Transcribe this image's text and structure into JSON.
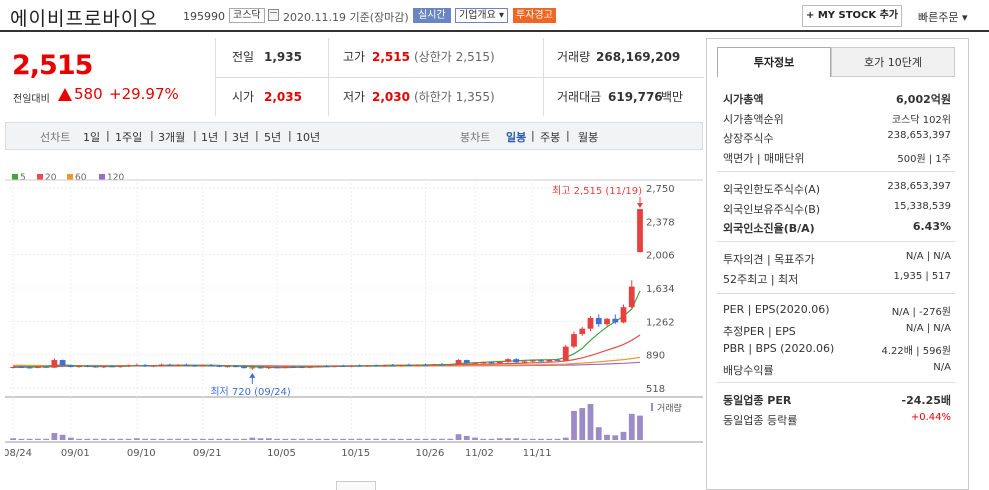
{
  "header": {
    "stock_name": "에이비프로바이오",
    "stock_code": "195990",
    "market": "코스닥",
    "date_text": "2020.11.19 기준(장마감)",
    "realtime": "실시간",
    "overview": "기업개요 ▾",
    "warning": "투자경고",
    "mystock": "+ MY STOCK 추가",
    "quick_order": "빠른주문 ▾"
  },
  "price": {
    "current": "2,515",
    "diff_label": "전일대비",
    "diff": "580",
    "rate": "+29.97%"
  },
  "summary": {
    "prev_label": "전일",
    "prev_value": "1,935",
    "high_label": "고가",
    "high_value": "2,515",
    "high_sub": "(상한가 2,515)",
    "volume_label": "거래량",
    "volume_value": "268,169,209",
    "open_label": "시가",
    "open_value": "2,035",
    "low_label": "저가",
    "low_value": "2,030",
    "low_sub": "(하한가 1,355)",
    "amount_label": "거래대금",
    "amount_value": "619,776",
    "amount_unit": "백만"
  },
  "periods": {
    "line_label": "선차트",
    "line_opts": [
      "1일",
      "1주일",
      "3개월",
      "1년",
      "3년",
      "5년",
      "10년"
    ],
    "candle_label": "봉차트",
    "candle_opts": [
      "일봉",
      "주봉",
      "월봉"
    ],
    "selected": "일봉"
  },
  "legend": [
    "5",
    "20",
    "60",
    "120"
  ],
  "colors": {
    "ma5": "#41a541",
    "ma20": "#e84c4c",
    "ma60": "#f0962d",
    "ma120": "#9b6cc8",
    "up": "#e84040",
    "down": "#3d6fd6",
    "volume": "#9b8cc8"
  },
  "sidebar": {
    "tab_active": "투자정보",
    "tab_inactive": "호가 10단계",
    "rows1": [
      {
        "k": "시가총액",
        "v": "6,002억원"
      },
      {
        "k": "시가총액순위",
        "v": "코스닥 102위"
      },
      {
        "k": "상장주식수",
        "v": "238,653,397"
      },
      {
        "k": "액면가 | 매매단위",
        "v": "500원 | 1주"
      }
    ],
    "rows2": [
      {
        "k": "외국인한도주식수(A)",
        "v": "238,653,397"
      },
      {
        "k": "외국인보유주식수(B)",
        "v": "15,338,539"
      },
      {
        "k": "외국인소진율(B/A)",
        "v": "6.43%"
      }
    ],
    "rows3": [
      {
        "k": "투자의견 | 목표주가",
        "v": "N/A | N/A"
      },
      {
        "k": "52주최고 | 최저",
        "v": "1,935 | 517"
      }
    ],
    "rows4": [
      {
        "k": "PER | EPS(2020.06)",
        "v": "N/A | -276원"
      },
      {
        "k": "추정PER | EPS",
        "v": "N/A | N/A"
      },
      {
        "k": "PBR | BPS (2020.06)",
        "v": "4.22배 | 596원"
      },
      {
        "k": "배당수익률",
        "v": "N/A"
      }
    ],
    "rows5": [
      {
        "k": "동일업종 PER",
        "v": "-24.25배"
      },
      {
        "k": "동일업종 등락률",
        "v": "+0.44%"
      }
    ]
  },
  "chart_data": {
    "type": "candlestick",
    "y_ticks": [
      "2,750",
      "2,378",
      "2,006",
      "1,634",
      "1,262",
      "890",
      "518"
    ],
    "ylim": [
      518,
      2750
    ],
    "x_ticks": [
      "08/24",
      "09/01",
      "09/10",
      "09/21",
      "10/05",
      "10/15",
      "10/26",
      "11/02",
      "11/11"
    ],
    "max_label": "최고 2,515 (11/19)",
    "min_label": "최저 720 (09/24)",
    "volume_label": "거래량",
    "candles": [
      [
        745,
        760,
        738,
        752
      ],
      [
        752,
        770,
        745,
        748
      ],
      [
        748,
        755,
        735,
        742
      ],
      [
        742,
        760,
        738,
        755
      ],
      [
        755,
        765,
        740,
        745
      ],
      [
        745,
        850,
        740,
        830
      ],
      [
        830,
        835,
        760,
        770
      ],
      [
        770,
        775,
        748,
        752
      ],
      [
        752,
        770,
        745,
        765
      ],
      [
        765,
        775,
        750,
        758
      ],
      [
        758,
        770,
        745,
        750
      ],
      [
        750,
        765,
        740,
        760
      ],
      [
        760,
        775,
        752,
        755
      ],
      [
        755,
        770,
        745,
        762
      ],
      [
        762,
        780,
        755,
        770
      ],
      [
        770,
        790,
        760,
        775
      ],
      [
        775,
        785,
        755,
        760
      ],
      [
        760,
        775,
        750,
        768
      ],
      [
        768,
        790,
        760,
        780
      ],
      [
        780,
        790,
        765,
        770
      ],
      [
        770,
        785,
        760,
        775
      ],
      [
        775,
        790,
        765,
        770
      ],
      [
        770,
        780,
        755,
        765
      ],
      [
        765,
        780,
        758,
        772
      ],
      [
        772,
        785,
        762,
        768
      ],
      [
        768,
        778,
        750,
        755
      ],
      [
        755,
        770,
        745,
        762
      ],
      [
        762,
        775,
        750,
        758
      ],
      [
        758,
        770,
        735,
        740
      ],
      [
        740,
        755,
        720,
        748
      ],
      [
        748,
        760,
        735,
        742
      ],
      [
        742,
        755,
        730,
        750
      ],
      [
        750,
        762,
        740,
        745
      ],
      [
        745,
        760,
        738,
        755
      ],
      [
        755,
        768,
        745,
        752
      ],
      [
        752,
        765,
        740,
        748
      ],
      [
        748,
        760,
        738,
        755
      ],
      [
        755,
        770,
        748,
        762
      ],
      [
        762,
        775,
        752,
        758
      ],
      [
        758,
        770,
        748,
        765
      ],
      [
        765,
        778,
        755,
        760
      ],
      [
        760,
        772,
        750,
        768
      ],
      [
        768,
        780,
        758,
        762
      ],
      [
        762,
        775,
        752,
        770
      ],
      [
        770,
        782,
        760,
        765
      ],
      [
        765,
        778,
        755,
        772
      ],
      [
        772,
        785,
        762,
        768
      ],
      [
        768,
        780,
        758,
        775
      ],
      [
        775,
        790,
        765,
        770
      ],
      [
        770,
        782,
        760,
        778
      ],
      [
        778,
        790,
        768,
        772
      ],
      [
        772,
        785,
        762,
        780
      ],
      [
        780,
        795,
        770,
        775
      ],
      [
        775,
        788,
        765,
        782
      ],
      [
        782,
        840,
        775,
        830
      ],
      [
        830,
        835,
        790,
        795
      ],
      [
        795,
        805,
        780,
        800
      ],
      [
        800,
        815,
        790,
        805
      ],
      [
        805,
        815,
        790,
        795
      ],
      [
        795,
        810,
        785,
        810
      ],
      [
        810,
        850,
        800,
        840
      ],
      [
        840,
        850,
        800,
        805
      ],
      [
        805,
        820,
        795,
        815
      ],
      [
        815,
        830,
        805,
        825
      ],
      [
        825,
        840,
        810,
        815
      ],
      [
        815,
        835,
        808,
        832
      ],
      [
        832,
        845,
        820,
        825
      ],
      [
        825,
        1000,
        820,
        980
      ],
      [
        980,
        1150,
        960,
        1120
      ],
      [
        1120,
        1200,
        1100,
        1180
      ],
      [
        1180,
        1320,
        1150,
        1300
      ],
      [
        1300,
        1340,
        1200,
        1230
      ],
      [
        1230,
        1300,
        1210,
        1290
      ],
      [
        1290,
        1340,
        1230,
        1250
      ],
      [
        1250,
        1450,
        1240,
        1420
      ],
      [
        1420,
        1720,
        1400,
        1650
      ],
      [
        2035,
        2515,
        2030,
        2515
      ]
    ],
    "ma5": [
      748,
      750,
      752,
      754,
      756,
      770,
      775,
      770,
      765,
      760,
      758,
      758,
      758,
      760,
      762,
      766,
      768,
      768,
      770,
      772,
      772,
      774,
      772,
      772,
      770,
      768,
      766,
      764,
      760,
      756,
      752,
      748,
      746,
      746,
      748,
      750,
      752,
      754,
      756,
      758,
      760,
      762,
      764,
      766,
      768,
      770,
      772,
      772,
      774,
      774,
      776,
      778,
      780,
      780,
      790,
      796,
      800,
      805,
      810,
      814,
      818,
      822,
      826,
      830,
      832,
      834,
      836,
      860,
      900,
      960,
      1050,
      1130,
      1200,
      1260,
      1320,
      1400,
      1600
    ],
    "ma20": [
      750,
      751,
      752,
      753,
      754,
      757,
      760,
      762,
      763,
      764,
      764,
      764,
      764,
      764,
      765,
      766,
      767,
      768,
      768,
      769,
      770,
      770,
      770,
      770,
      770,
      769,
      768,
      767,
      766,
      765,
      764,
      763,
      762,
      761,
      760,
      760,
      760,
      760,
      761,
      762,
      763,
      764,
      765,
      766,
      767,
      768,
      769,
      770,
      771,
      772,
      773,
      774,
      775,
      776,
      778,
      780,
      782,
      784,
      786,
      788,
      790,
      793,
      796,
      799,
      802,
      806,
      810,
      820,
      835,
      855,
      880,
      910,
      940,
      970,
      1005,
      1050,
      1110
    ],
    "ma60": [
      770,
      770,
      769,
      769,
      768,
      768,
      768,
      768,
      767,
      767,
      767,
      766,
      766,
      766,
      766,
      766,
      766,
      766,
      766,
      766,
      766,
      766,
      766,
      766,
      766,
      766,
      765,
      765,
      765,
      764,
      764,
      763,
      763,
      762,
      762,
      762,
      762,
      762,
      762,
      762,
      762,
      762,
      763,
      763,
      763,
      764,
      764,
      764,
      765,
      765,
      766,
      766,
      767,
      767,
      768,
      769,
      770,
      771,
      772,
      773,
      774,
      775,
      776,
      777,
      778,
      780,
      782,
      785,
      790,
      796,
      803,
      810,
      818,
      826,
      835,
      846,
      860
    ],
    "ma120": [
      765,
      765,
      765,
      765,
      765,
      765,
      765,
      765,
      765,
      765,
      765,
      765,
      765,
      765,
      765,
      765,
      764,
      764,
      764,
      764,
      764,
      764,
      764,
      764,
      764,
      764,
      764,
      764,
      764,
      763,
      763,
      763,
      763,
      763,
      763,
      763,
      763,
      763,
      763,
      763,
      763,
      763,
      763,
      763,
      763,
      764,
      764,
      764,
      764,
      764,
      764,
      765,
      765,
      765,
      765,
      766,
      766,
      766,
      767,
      767,
      768,
      768,
      769,
      770,
      770,
      771,
      772,
      773,
      775,
      777,
      780,
      783,
      786,
      790,
      794,
      799,
      805
    ],
    "volumes": [
      3,
      2,
      2,
      2,
      2,
      12,
      9,
      4,
      2,
      2,
      2,
      2,
      2,
      2,
      2,
      3,
      2,
      2,
      2,
      2,
      2,
      2,
      2,
      2,
      2,
      2,
      2,
      2,
      2,
      4,
      3,
      3,
      2,
      2,
      2,
      2,
      2,
      2,
      2,
      2,
      2,
      2,
      2,
      2,
      2,
      2,
      2,
      2,
      2,
      2,
      2,
      2,
      2,
      2,
      10,
      7,
      4,
      2,
      2,
      3,
      3,
      3,
      2,
      2,
      2,
      2,
      2,
      4,
      50,
      55,
      62,
      22,
      9,
      8,
      14,
      45,
      42
    ]
  }
}
